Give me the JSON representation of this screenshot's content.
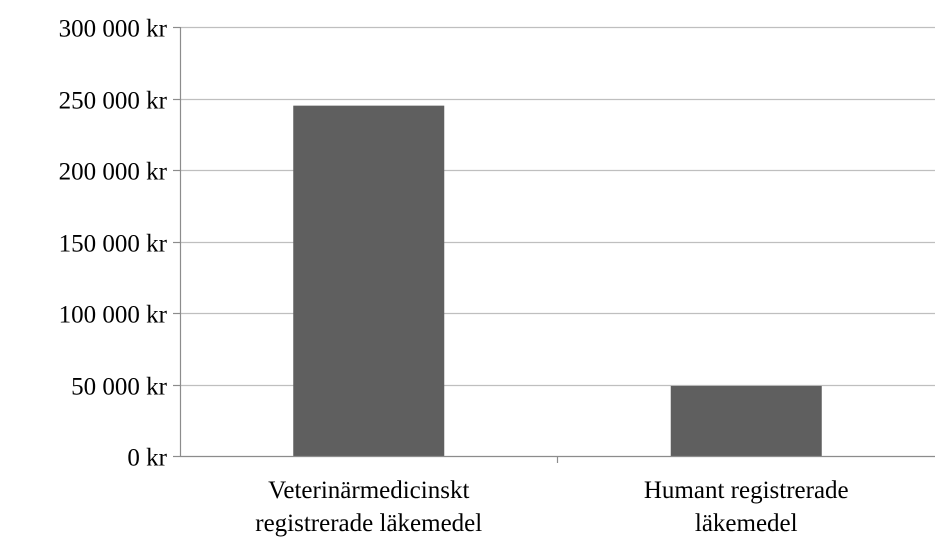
{
  "chart_data": {
    "type": "bar",
    "title": "",
    "xlabel": "",
    "ylabel": "",
    "categories": [
      [
        "Veterinärmedicinskt",
        "registrerade läkemedel"
      ],
      [
        "Humant registrerade",
        "läkemedel"
      ]
    ],
    "values": [
      245000,
      49000
    ],
    "ylim": [
      0,
      300000
    ],
    "yticks": [
      0,
      50000,
      100000,
      150000,
      200000,
      250000,
      300000
    ],
    "ytick_labels": [
      "0 kr",
      "50 000 kr",
      "100 000 kr",
      "150 000 kr",
      "200 000 kr",
      "250 000 kr",
      "300 000 kr"
    ],
    "grid": true,
    "legend": "none",
    "colors": {
      "bar": "#5f5f5f",
      "grid": "#bfbfbf",
      "axis": "#8c8c8c"
    }
  }
}
